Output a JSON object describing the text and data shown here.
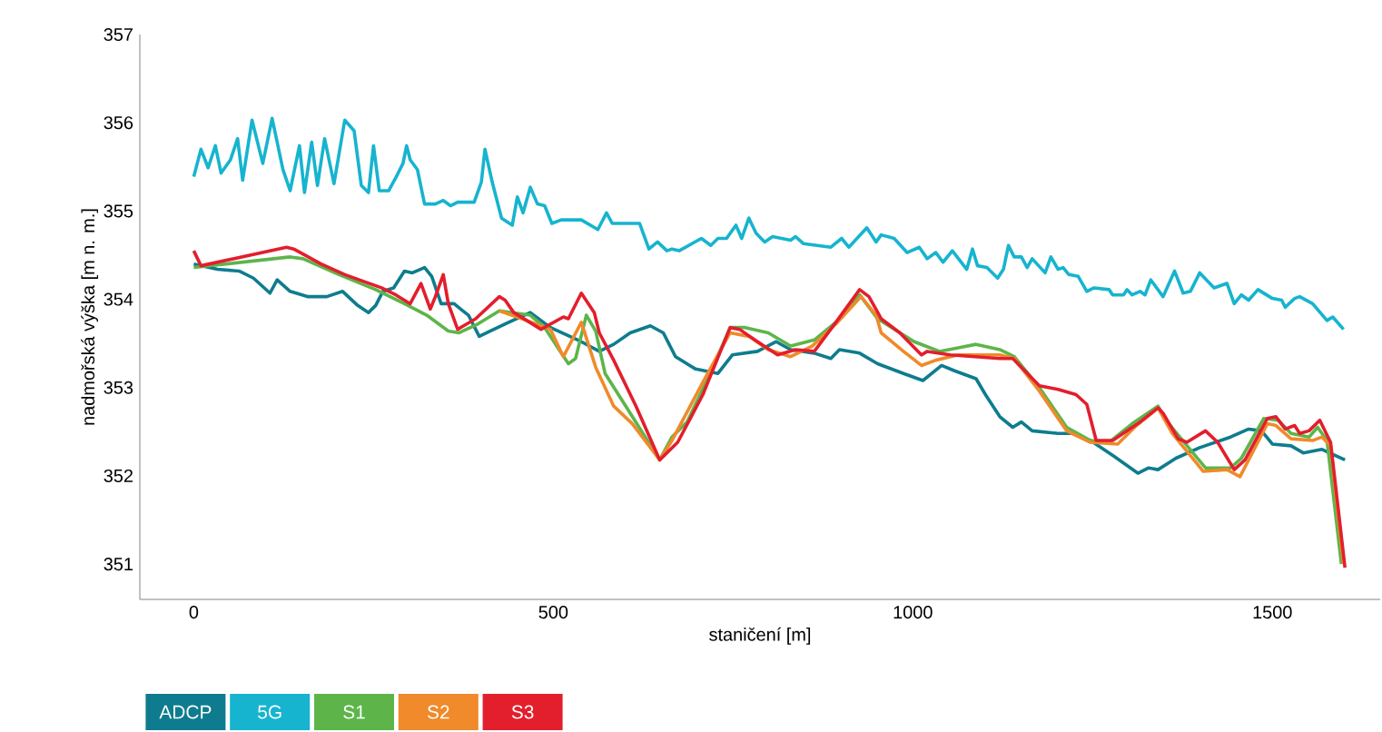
{
  "chart_data": {
    "type": "line",
    "xlabel": "staničení [m]",
    "ylabel": "nadmořská výška [m n. m.]",
    "xlim": [
      -75,
      1650
    ],
    "ylim": [
      350.6,
      357
    ],
    "xticks": [
      0,
      500,
      1000,
      1500
    ],
    "yticks": [
      351,
      352,
      353,
      354,
      355,
      356,
      357
    ],
    "legend": "bottom left",
    "series": [
      {
        "name": "ADCP",
        "color": "#0e7c8e",
        "x": [
          0,
          33,
          63,
          83,
          106,
          116,
          134,
          159,
          185,
          207,
          228,
          243,
          253,
          263,
          278,
          293,
          304,
          321,
          331,
          344,
          362,
          374,
          382,
          397,
          412,
          438,
          468,
          496,
          539,
          564,
          584,
          607,
          635,
          653,
          670,
          698,
          729,
          749,
          784,
          810,
          830,
          863,
          886,
          898,
          926,
          951,
          987,
          1014,
          1040,
          1058,
          1088,
          1101,
          1121,
          1139,
          1151,
          1166,
          1202,
          1222,
          1247,
          1280,
          1313,
          1328,
          1341,
          1366,
          1399,
          1442,
          1467,
          1485,
          1500,
          1526,
          1543,
          1569,
          1601
        ],
        "values": [
          354.4,
          354.34,
          354.32,
          354.24,
          354.07,
          354.22,
          354.09,
          354.03,
          354.03,
          354.09,
          353.93,
          353.85,
          353.93,
          354.09,
          354.13,
          354.32,
          354.3,
          354.36,
          354.26,
          353.95,
          353.95,
          353.87,
          353.82,
          353.58,
          353.64,
          353.74,
          353.85,
          353.68,
          353.52,
          353.41,
          353.49,
          353.62,
          353.7,
          353.62,
          353.35,
          353.21,
          353.16,
          353.37,
          353.41,
          353.52,
          353.43,
          353.39,
          353.33,
          353.43,
          353.39,
          353.27,
          353.16,
          353.08,
          353.25,
          353.19,
          353.1,
          352.92,
          352.67,
          352.55,
          352.61,
          352.51,
          352.48,
          352.48,
          352.4,
          352.22,
          352.03,
          352.09,
          352.07,
          352.2,
          352.32,
          352.44,
          352.53,
          352.51,
          352.36,
          352.34,
          352.26,
          352.3,
          352.18
        ]
      },
      {
        "name": "5G",
        "color": "#16b4cf",
        "x": [
          0,
          10,
          20,
          30,
          38,
          51,
          61,
          68,
          81,
          96,
          109,
          124,
          134,
          147,
          154,
          164,
          172,
          182,
          195,
          210,
          223,
          233,
          243,
          250,
          258,
          271,
          283,
          291,
          296,
          301,
          311,
          321,
          336,
          347,
          357,
          367,
          390,
          400,
          405,
          415,
          428,
          443,
          450,
          458,
          468,
          478,
          488,
          498,
          511,
          539,
          562,
          574,
          582,
          620,
          633,
          645,
          658,
          665,
          675,
          706,
          719,
          729,
          741,
          754,
          762,
          772,
          782,
          794,
          805,
          830,
          837,
          848,
          886,
          901,
          911,
          936,
          949,
          956,
          974,
          992,
          1009,
          1020,
          1032,
          1042,
          1055,
          1075,
          1083,
          1090,
          1103,
          1118,
          1126,
          1133,
          1141,
          1151,
          1159,
          1166,
          1184,
          1192,
          1202,
          1209,
          1217,
          1230,
          1242,
          1252,
          1273,
          1278,
          1293,
          1298,
          1305,
          1316,
          1323,
          1331,
          1348,
          1364,
          1376,
          1386,
          1399,
          1419,
          1437,
          1447,
          1457,
          1467,
          1480,
          1500,
          1513,
          1518,
          1531,
          1538,
          1556,
          1576,
          1584,
          1599
        ],
        "values": [
          355.39,
          355.7,
          355.49,
          355.74,
          355.43,
          355.58,
          355.82,
          355.35,
          356.03,
          355.54,
          356.05,
          355.47,
          355.23,
          355.74,
          355.21,
          355.78,
          355.29,
          355.82,
          355.31,
          356.03,
          355.91,
          355.29,
          355.21,
          355.74,
          355.23,
          355.23,
          355.41,
          355.54,
          355.74,
          355.58,
          355.47,
          355.08,
          355.08,
          355.12,
          355.06,
          355.1,
          355.1,
          355.33,
          355.7,
          355.33,
          354.92,
          354.84,
          355.16,
          354.98,
          355.27,
          355.08,
          355.06,
          354.86,
          354.9,
          354.9,
          354.79,
          354.98,
          354.86,
          354.86,
          354.57,
          354.65,
          354.55,
          354.57,
          354.55,
          354.69,
          354.61,
          354.69,
          354.69,
          354.84,
          354.69,
          354.92,
          354.75,
          354.65,
          354.71,
          354.67,
          354.71,
          354.63,
          354.59,
          354.69,
          354.59,
          354.81,
          354.65,
          354.73,
          354.69,
          354.53,
          354.59,
          354.46,
          354.53,
          354.42,
          354.55,
          354.34,
          354.57,
          354.38,
          354.36,
          354.24,
          354.34,
          354.61,
          354.48,
          354.48,
          354.36,
          354.46,
          354.3,
          354.48,
          354.34,
          354.36,
          354.28,
          354.26,
          354.09,
          354.13,
          354.11,
          354.05,
          354.05,
          354.11,
          354.05,
          354.09,
          354.05,
          354.22,
          354.03,
          354.32,
          354.07,
          354.09,
          354.3,
          354.13,
          354.18,
          353.95,
          354.05,
          353.99,
          354.11,
          354.01,
          353.99,
          353.91,
          354.01,
          354.03,
          353.95,
          353.76,
          353.8,
          353.66
        ]
      },
      {
        "name": "S1",
        "color": "#5db54a",
        "x": [
          0,
          134,
          152,
          202,
          253,
          293,
          324,
          354,
          369,
          395,
          425,
          468,
          488,
          521,
          531,
          546,
          559,
          572,
          607,
          648,
          665,
          686,
          716,
          746,
          767,
          799,
          830,
          863,
          893,
          926,
          951,
          1002,
          1037,
          1063,
          1088,
          1121,
          1141,
          1176,
          1214,
          1247,
          1273,
          1305,
          1341,
          1356,
          1407,
          1442,
          1457,
          1488,
          1508,
          1526,
          1551,
          1563,
          1576,
          1596
        ],
        "values": [
          354.36,
          354.48,
          354.46,
          354.28,
          354.11,
          353.95,
          353.82,
          353.64,
          353.62,
          353.72,
          353.87,
          353.82,
          353.68,
          353.27,
          353.33,
          353.82,
          353.64,
          353.16,
          352.71,
          352.18,
          352.44,
          352.61,
          353.12,
          353.68,
          353.68,
          353.62,
          353.47,
          353.54,
          353.74,
          354.05,
          353.78,
          353.52,
          353.41,
          353.45,
          353.49,
          353.43,
          353.35,
          353.0,
          352.55,
          352.4,
          352.38,
          352.59,
          352.79,
          352.59,
          352.09,
          352.09,
          352.2,
          352.65,
          352.63,
          352.48,
          352.44,
          352.55,
          352.4,
          351.0
        ]
      },
      {
        "name": "S2",
        "color": "#f08a2a",
        "x": [
          425,
          463,
          496,
          514,
          539,
          559,
          584,
          610,
          648,
          665,
          708,
          746,
          772,
          799,
          830,
          860,
          893,
          928,
          949,
          956,
          987,
          1012,
          1032,
          1063,
          1121,
          1141,
          1176,
          1214,
          1247,
          1285,
          1311,
          1341,
          1361,
          1404,
          1437,
          1455,
          1493,
          1505,
          1526,
          1556,
          1569,
          1581,
          1599
        ],
        "values": [
          353.87,
          353.76,
          353.66,
          353.35,
          353.74,
          353.23,
          352.79,
          352.59,
          352.18,
          352.4,
          353.06,
          353.62,
          353.58,
          353.43,
          353.35,
          353.47,
          353.72,
          354.03,
          353.82,
          353.62,
          353.41,
          353.25,
          353.31,
          353.37,
          353.37,
          353.33,
          352.96,
          352.51,
          352.38,
          352.36,
          352.57,
          352.77,
          352.48,
          352.05,
          352.07,
          351.99,
          352.59,
          352.57,
          352.42,
          352.4,
          352.44,
          352.34,
          351.0
        ]
      },
      {
        "name": "S3",
        "color": "#e31e2d",
        "x": [
          0,
          10,
          129,
          139,
          177,
          210,
          261,
          281,
          301,
          316,
          329,
          336,
          347,
          354,
          367,
          392,
          425,
          433,
          445,
          483,
          514,
          521,
          539,
          557,
          564,
          584,
          615,
          648,
          673,
          708,
          746,
          759,
          784,
          812,
          837,
          863,
          893,
          926,
          939,
          956,
          982,
          1012,
          1020,
          1052,
          1121,
          1139,
          1176,
          1202,
          1227,
          1242,
          1255,
          1278,
          1316,
          1341,
          1348,
          1369,
          1381,
          1407,
          1424,
          1447,
          1462,
          1493,
          1505,
          1518,
          1531,
          1538,
          1551,
          1566,
          1581,
          1601
        ],
        "values": [
          354.55,
          354.38,
          354.59,
          354.57,
          354.4,
          354.28,
          354.13,
          354.05,
          353.95,
          354.18,
          353.89,
          354.03,
          354.28,
          353.95,
          353.66,
          353.78,
          354.03,
          353.99,
          353.85,
          353.66,
          353.8,
          353.78,
          354.07,
          353.85,
          353.62,
          353.31,
          352.79,
          352.18,
          352.38,
          352.92,
          353.68,
          353.66,
          353.52,
          353.37,
          353.43,
          353.41,
          353.74,
          354.11,
          354.03,
          353.78,
          353.62,
          353.37,
          353.41,
          353.37,
          353.33,
          353.33,
          353.02,
          352.98,
          352.92,
          352.81,
          352.4,
          352.4,
          352.61,
          352.77,
          352.71,
          352.42,
          352.38,
          352.51,
          352.38,
          352.07,
          352.18,
          352.65,
          352.67,
          352.53,
          352.57,
          352.48,
          352.51,
          352.63,
          352.38,
          350.96
        ]
      }
    ]
  }
}
